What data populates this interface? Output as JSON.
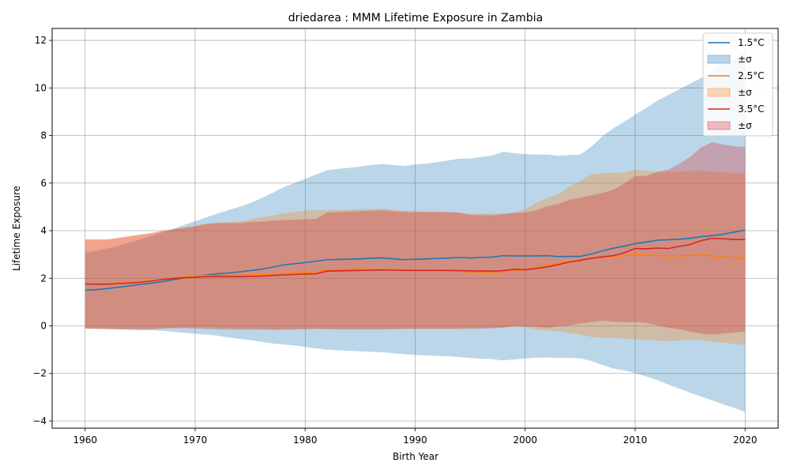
{
  "chart_data": {
    "type": "area",
    "title": "driedarea : MMM Lifetime Exposure in Zambia",
    "xlabel": "Birth Year",
    "ylabel": "Lifetime Exposure",
    "xlim": [
      1957,
      2023
    ],
    "ylim": [
      -4.3,
      12.5
    ],
    "xticks": [
      1960,
      1970,
      1980,
      1990,
      2000,
      2010,
      2020
    ],
    "yticks": [
      -4,
      -2,
      0,
      2,
      4,
      6,
      8,
      10,
      12
    ],
    "grid": true,
    "legend_position": "top-right",
    "x": [
      1960,
      1961,
      1962,
      1963,
      1964,
      1965,
      1966,
      1967,
      1968,
      1969,
      1970,
      1971,
      1972,
      1973,
      1974,
      1975,
      1976,
      1977,
      1978,
      1979,
      1980,
      1981,
      1982,
      1983,
      1984,
      1985,
      1986,
      1987,
      1988,
      1989,
      1990,
      1991,
      1992,
      1993,
      1994,
      1995,
      1996,
      1997,
      1998,
      1999,
      2000,
      2001,
      2002,
      2003,
      2004,
      2005,
      2006,
      2007,
      2008,
      2009,
      2010,
      2011,
      2012,
      2013,
      2014,
      2015,
      2016,
      2017,
      2018,
      2019,
      2020
    ],
    "series": [
      {
        "name": "1.5°C",
        "band_label": "±σ",
        "color": "#1f77b4",
        "mean": [
          1.5,
          1.52,
          1.57,
          1.62,
          1.68,
          1.74,
          1.79,
          1.86,
          1.94,
          2.02,
          2.08,
          2.14,
          2.19,
          2.22,
          2.27,
          2.32,
          2.38,
          2.46,
          2.56,
          2.61,
          2.66,
          2.72,
          2.78,
          2.79,
          2.8,
          2.82,
          2.84,
          2.86,
          2.82,
          2.78,
          2.8,
          2.81,
          2.83,
          2.85,
          2.88,
          2.85,
          2.88,
          2.89,
          2.95,
          2.94,
          2.94,
          2.94,
          2.95,
          2.91,
          2.92,
          2.92,
          3.02,
          3.15,
          3.26,
          3.35,
          3.46,
          3.52,
          3.6,
          3.62,
          3.64,
          3.68,
          3.75,
          3.79,
          3.85,
          3.94,
          4.03
        ],
        "upper": [
          3.08,
          3.15,
          3.25,
          3.36,
          3.5,
          3.64,
          3.78,
          3.93,
          4.08,
          4.24,
          4.4,
          4.56,
          4.72,
          4.86,
          5.0,
          5.16,
          5.36,
          5.58,
          5.82,
          6.0,
          6.18,
          6.36,
          6.54,
          6.6,
          6.64,
          6.7,
          6.76,
          6.8,
          6.76,
          6.72,
          6.78,
          6.82,
          6.88,
          6.95,
          7.03,
          7.03,
          7.1,
          7.16,
          7.32,
          7.26,
          7.22,
          7.2,
          7.2,
          7.15,
          7.18,
          7.2,
          7.52,
          7.96,
          8.3,
          8.58,
          8.88,
          9.15,
          9.46,
          9.7,
          9.94,
          10.18,
          10.42,
          10.7,
          10.98,
          11.2,
          11.5
        ],
        "lower": [
          -0.1,
          -0.12,
          -0.12,
          -0.14,
          -0.16,
          -0.17,
          -0.18,
          -0.21,
          -0.25,
          -0.29,
          -0.33,
          -0.37,
          -0.41,
          -0.48,
          -0.55,
          -0.6,
          -0.67,
          -0.74,
          -0.78,
          -0.82,
          -0.88,
          -0.95,
          -1.0,
          -1.03,
          -1.05,
          -1.07,
          -1.09,
          -1.11,
          -1.15,
          -1.19,
          -1.22,
          -1.24,
          -1.26,
          -1.28,
          -1.31,
          -1.35,
          -1.38,
          -1.4,
          -1.45,
          -1.41,
          -1.37,
          -1.34,
          -1.33,
          -1.35,
          -1.35,
          -1.36,
          -1.48,
          -1.64,
          -1.79,
          -1.87,
          -1.99,
          -2.13,
          -2.28,
          -2.46,
          -2.63,
          -2.81,
          -2.97,
          -3.13,
          -3.3,
          -3.45,
          -3.62
        ]
      },
      {
        "name": "2.5°C",
        "band_label": "±σ",
        "color": "#ff7f0e",
        "mean": [
          1.75,
          1.76,
          1.77,
          1.8,
          1.83,
          1.86,
          1.9,
          1.95,
          2.0,
          2.06,
          2.1,
          2.12,
          2.12,
          2.12,
          2.13,
          2.14,
          2.16,
          2.18,
          2.2,
          2.22,
          2.24,
          2.27,
          2.34,
          2.36,
          2.37,
          2.37,
          2.37,
          2.37,
          2.36,
          2.35,
          2.34,
          2.34,
          2.33,
          2.31,
          2.3,
          2.26,
          2.26,
          2.25,
          2.28,
          2.3,
          2.36,
          2.46,
          2.56,
          2.62,
          2.7,
          2.78,
          2.82,
          2.88,
          2.92,
          2.95,
          3.0,
          2.98,
          2.96,
          2.94,
          2.94,
          2.96,
          2.98,
          2.95,
          2.9,
          2.87,
          2.8
        ],
        "upper": [
          3.62,
          3.62,
          3.62,
          3.68,
          3.76,
          3.82,
          3.88,
          3.98,
          4.06,
          4.14,
          4.22,
          4.3,
          4.34,
          4.36,
          4.38,
          4.46,
          4.56,
          4.64,
          4.72,
          4.78,
          4.84,
          4.86,
          4.86,
          4.88,
          4.88,
          4.9,
          4.9,
          4.92,
          4.88,
          4.84,
          4.82,
          4.8,
          4.8,
          4.78,
          4.75,
          4.72,
          4.73,
          4.72,
          4.72,
          4.74,
          4.9,
          5.16,
          5.38,
          5.52,
          5.84,
          6.08,
          6.36,
          6.42,
          6.44,
          6.45,
          6.56,
          6.52,
          6.48,
          6.48,
          6.48,
          6.5,
          6.52,
          6.48,
          6.45,
          6.42,
          6.4
        ],
        "lower": [
          -0.1,
          -0.11,
          -0.12,
          -0.12,
          -0.11,
          -0.11,
          -0.1,
          -0.09,
          -0.08,
          -0.07,
          -0.06,
          -0.06,
          -0.07,
          -0.09,
          -0.11,
          -0.12,
          -0.13,
          -0.14,
          -0.14,
          -0.13,
          -0.12,
          -0.12,
          -0.12,
          -0.13,
          -0.13,
          -0.13,
          -0.13,
          -0.13,
          -0.13,
          -0.13,
          -0.12,
          -0.12,
          -0.12,
          -0.12,
          -0.11,
          -0.1,
          -0.1,
          -0.08,
          -0.05,
          -0.03,
          -0.06,
          -0.14,
          -0.19,
          -0.22,
          -0.29,
          -0.37,
          -0.46,
          -0.5,
          -0.52,
          -0.53,
          -0.57,
          -0.59,
          -0.62,
          -0.64,
          -0.62,
          -0.58,
          -0.6,
          -0.66,
          -0.7,
          -0.76,
          -0.8
        ]
      },
      {
        "name": "3.5°C",
        "band_label": "±σ",
        "color": "#d62728",
        "mean": [
          1.76,
          1.75,
          1.75,
          1.78,
          1.8,
          1.83,
          1.88,
          1.95,
          1.99,
          2.02,
          2.04,
          2.07,
          2.08,
          2.07,
          2.07,
          2.08,
          2.09,
          2.12,
          2.14,
          2.16,
          2.18,
          2.19,
          2.3,
          2.31,
          2.32,
          2.33,
          2.34,
          2.35,
          2.34,
          2.33,
          2.33,
          2.33,
          2.33,
          2.33,
          2.32,
          2.31,
          2.31,
          2.3,
          2.32,
          2.38,
          2.36,
          2.41,
          2.48,
          2.57,
          2.68,
          2.75,
          2.84,
          2.9,
          2.95,
          3.07,
          3.25,
          3.24,
          3.27,
          3.25,
          3.34,
          3.42,
          3.58,
          3.68,
          3.66,
          3.63,
          3.63
        ],
        "upper": [
          3.64,
          3.64,
          3.64,
          3.7,
          3.77,
          3.84,
          3.9,
          4.0,
          4.06,
          4.12,
          4.18,
          4.28,
          4.32,
          4.32,
          4.32,
          4.36,
          4.38,
          4.42,
          4.44,
          4.46,
          4.48,
          4.5,
          4.76,
          4.78,
          4.8,
          4.82,
          4.84,
          4.86,
          4.82,
          4.78,
          4.78,
          4.78,
          4.78,
          4.78,
          4.76,
          4.66,
          4.65,
          4.64,
          4.7,
          4.76,
          4.76,
          4.86,
          5.02,
          5.12,
          5.3,
          5.38,
          5.48,
          5.58,
          5.72,
          5.98,
          6.3,
          6.3,
          6.46,
          6.56,
          6.8,
          7.1,
          7.5,
          7.72,
          7.62,
          7.55,
          7.52
        ],
        "lower": [
          -0.12,
          -0.13,
          -0.14,
          -0.15,
          -0.16,
          -0.17,
          -0.16,
          -0.12,
          -0.1,
          -0.1,
          -0.11,
          -0.13,
          -0.15,
          -0.16,
          -0.16,
          -0.16,
          -0.16,
          -0.17,
          -0.17,
          -0.16,
          -0.14,
          -0.13,
          -0.15,
          -0.15,
          -0.15,
          -0.15,
          -0.15,
          -0.15,
          -0.14,
          -0.13,
          -0.13,
          -0.13,
          -0.13,
          -0.13,
          -0.13,
          -0.12,
          -0.12,
          -0.1,
          -0.08,
          -0.02,
          -0.03,
          -0.04,
          -0.08,
          -0.03,
          0.02,
          0.1,
          0.16,
          0.22,
          0.18,
          0.15,
          0.16,
          0.13,
          0.02,
          -0.08,
          -0.14,
          -0.25,
          -0.33,
          -0.36,
          -0.33,
          -0.28,
          -0.24
        ]
      }
    ]
  }
}
